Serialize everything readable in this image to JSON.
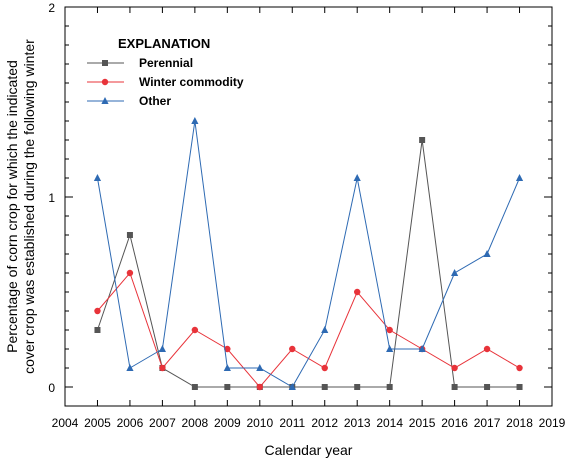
{
  "chart_data": {
    "type": "line",
    "xlabel": "Calendar year",
    "ylabel_lines": [
      "Percentage of corn crop for which the indicated",
      "cover crop was established during the following winter"
    ],
    "xlim": [
      2004,
      2019
    ],
    "ylim": [
      -0.1,
      2
    ],
    "x_ticks": [
      2004,
      2005,
      2006,
      2007,
      2008,
      2009,
      2010,
      2011,
      2012,
      2013,
      2014,
      2015,
      2016,
      2017,
      2018,
      2019
    ],
    "y_ticks_labeled": [
      0,
      1,
      2
    ],
    "y_minor_step": 0.1,
    "grid": false,
    "legend": {
      "title": "EXPLANATION",
      "position": "top-left"
    },
    "x": [
      2005,
      2006,
      2007,
      2008,
      2009,
      2010,
      2011,
      2012,
      2013,
      2014,
      2015,
      2016,
      2017,
      2018
    ],
    "series": [
      {
        "name": "Perennial",
        "color": "#555555",
        "marker": "square",
        "values": [
          0.3,
          0.8,
          0.1,
          0,
          0,
          0,
          0,
          0,
          0,
          0,
          1.3,
          0,
          0,
          0
        ]
      },
      {
        "name": "Winter commodity",
        "color": "#e8333a",
        "marker": "circle",
        "values": [
          0.4,
          0.6,
          0.1,
          0.3,
          0.2,
          0,
          0.2,
          0.1,
          0.5,
          0.3,
          0.2,
          0.1,
          0.2,
          0.1
        ]
      },
      {
        "name": "Other",
        "color": "#2e6ab3",
        "marker": "triangle",
        "values": [
          1.1,
          0.1,
          0.2,
          1.4,
          0.1,
          0.1,
          0,
          0.3,
          1.1,
          0.2,
          0.2,
          0.6,
          0.7,
          1.1
        ]
      }
    ]
  }
}
